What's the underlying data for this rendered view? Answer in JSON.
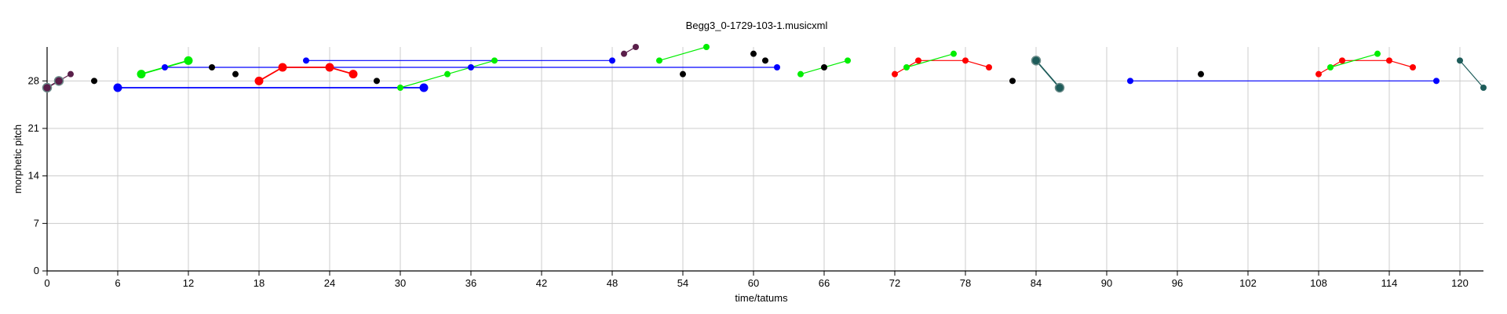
{
  "chart_data": {
    "type": "scatter",
    "title": "Begg3_0-1729-103-1.musicxml",
    "xlabel": "time/tatums",
    "ylabel": "morphetic pitch",
    "xlim": [
      0,
      122
    ],
    "ylim": [
      0,
      33
    ],
    "xticks": [
      0,
      6,
      12,
      18,
      24,
      30,
      36,
      42,
      48,
      54,
      60,
      66,
      72,
      78,
      84,
      90,
      96,
      102,
      108,
      114,
      120
    ],
    "yticks": [
      0,
      7,
      14,
      21,
      28
    ],
    "grid": true,
    "colors": {
      "red": "#ff0000",
      "green": "#00ee00",
      "blue": "#0000ff",
      "black": "#000000",
      "purple": "#5a1f4a",
      "teal": "#1e5c5a"
    },
    "groups": [
      {
        "color": "purple",
        "size": "large",
        "points": [
          [
            0,
            27
          ],
          [
            1,
            28
          ]
        ]
      },
      {
        "color": "purple",
        "size": "small",
        "points": [
          [
            1,
            28
          ],
          [
            2,
            29
          ]
        ]
      },
      {
        "color": "black",
        "size": "small",
        "points": [
          [
            4,
            28
          ]
        ]
      },
      {
        "color": "blue",
        "size": "large",
        "points": [
          [
            6,
            27
          ],
          [
            32,
            27
          ]
        ]
      },
      {
        "color": "green",
        "size": "large",
        "points": [
          [
            8,
            29
          ],
          [
            12,
            31
          ]
        ]
      },
      {
        "color": "blue",
        "size": "small",
        "points": [
          [
            10,
            30
          ],
          [
            62,
            30
          ]
        ]
      },
      {
        "color": "black",
        "size": "small",
        "points": [
          [
            14,
            30
          ]
        ]
      },
      {
        "color": "black",
        "size": "small",
        "points": [
          [
            16,
            29
          ]
        ]
      },
      {
        "color": "red",
        "size": "large",
        "points": [
          [
            18,
            28
          ],
          [
            20,
            30
          ],
          [
            24,
            30
          ],
          [
            26,
            29
          ]
        ]
      },
      {
        "color": "blue",
        "size": "small",
        "points": [
          [
            22,
            31
          ],
          [
            48,
            31
          ]
        ]
      },
      {
        "color": "black",
        "size": "small",
        "points": [
          [
            28,
            28
          ]
        ]
      },
      {
        "color": "green",
        "size": "small",
        "points": [
          [
            30,
            27
          ],
          [
            34,
            29
          ],
          [
            38,
            31
          ]
        ]
      },
      {
        "color": "blue",
        "size": "small",
        "points": [
          [
            36,
            30
          ]
        ]
      },
      {
        "color": "purple",
        "size": "small",
        "points": [
          [
            49,
            32
          ],
          [
            50,
            33
          ]
        ]
      },
      {
        "color": "green",
        "size": "small",
        "points": [
          [
            52,
            31
          ],
          [
            56,
            33
          ]
        ]
      },
      {
        "color": "black",
        "size": "small",
        "points": [
          [
            54,
            29
          ]
        ]
      },
      {
        "color": "black",
        "size": "small",
        "points": [
          [
            60,
            32
          ]
        ]
      },
      {
        "color": "black",
        "size": "small",
        "points": [
          [
            61,
            31
          ]
        ]
      },
      {
        "color": "green",
        "size": "small",
        "points": [
          [
            64,
            29
          ],
          [
            68,
            31
          ]
        ]
      },
      {
        "color": "black",
        "size": "small",
        "points": [
          [
            66,
            30
          ]
        ]
      },
      {
        "color": "red",
        "size": "small",
        "points": [
          [
            72,
            29
          ],
          [
            74,
            31
          ],
          [
            78,
            31
          ],
          [
            80,
            30
          ]
        ]
      },
      {
        "color": "green",
        "size": "small",
        "points": [
          [
            73,
            30
          ],
          [
            77,
            32
          ]
        ]
      },
      {
        "color": "black",
        "size": "small",
        "points": [
          [
            82,
            28
          ]
        ]
      },
      {
        "color": "teal",
        "size": "large",
        "points": [
          [
            84,
            31
          ],
          [
            86,
            27
          ]
        ]
      },
      {
        "color": "blue",
        "size": "small",
        "points": [
          [
            92,
            28
          ],
          [
            118,
            28
          ]
        ]
      },
      {
        "color": "black",
        "size": "small",
        "points": [
          [
            98,
            29
          ]
        ]
      },
      {
        "color": "red",
        "size": "small",
        "points": [
          [
            108,
            29
          ],
          [
            110,
            31
          ],
          [
            114,
            31
          ],
          [
            116,
            30
          ]
        ]
      },
      {
        "color": "green",
        "size": "small",
        "points": [
          [
            109,
            30
          ],
          [
            113,
            32
          ]
        ]
      },
      {
        "color": "teal",
        "size": "small",
        "points": [
          [
            120,
            31
          ],
          [
            122,
            27
          ]
        ]
      }
    ]
  }
}
